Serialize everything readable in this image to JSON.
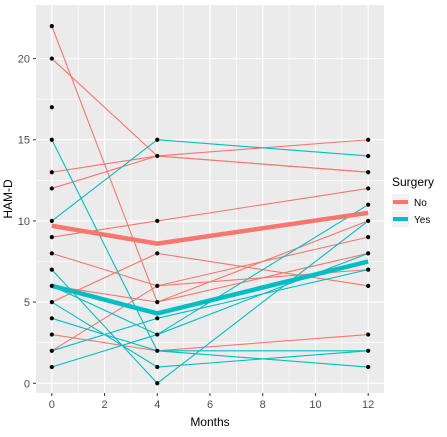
{
  "chart_data": {
    "type": "line",
    "title": "",
    "xlabel": "Months",
    "ylabel": "HAM-D",
    "xlim": [
      -0.6,
      12.6
    ],
    "ylim": [
      -0.6,
      23.3
    ],
    "x_ticks": [
      0,
      2,
      4,
      6,
      8,
      10,
      12
    ],
    "y_ticks": [
      0,
      5,
      10,
      15,
      20
    ],
    "grid": true,
    "legend": {
      "title": "Surgery",
      "position": "right",
      "entries": [
        {
          "label": "No",
          "color": "#F8766D"
        },
        {
          "label": "Yes",
          "color": "#00BFC4"
        }
      ]
    },
    "colors": {
      "No": "#F8766D",
      "Yes": "#00BFC4",
      "points": "#000000",
      "panel": "#EBEBEB",
      "grid": "#FFFFFF"
    },
    "mean_lines": [
      {
        "group": "No",
        "x": [
          0,
          4,
          12
        ],
        "y": [
          9.7,
          8.6,
          10.5
        ]
      },
      {
        "group": "Yes",
        "x": [
          0,
          4,
          12
        ],
        "y": [
          6.0,
          4.3,
          7.5
        ]
      }
    ],
    "subject_lines": [
      {
        "group": "No",
        "x": [
          0,
          4,
          12
        ],
        "y": [
          22,
          5,
          10
        ]
      },
      {
        "group": "No",
        "x": [
          0,
          4,
          12
        ],
        "y": [
          20,
          14,
          13
        ]
      },
      {
        "group": "No",
        "x": [
          0,
          4,
          12
        ],
        "y": [
          13,
          14,
          15
        ]
      },
      {
        "group": "No",
        "x": [
          0,
          4,
          12
        ],
        "y": [
          12,
          14,
          13
        ]
      },
      {
        "group": "No",
        "x": [
          0,
          4,
          12
        ],
        "y": [
          9,
          10,
          12
        ]
      },
      {
        "group": "No",
        "x": [
          0,
          4,
          12
        ],
        "y": [
          8,
          6,
          9
        ]
      },
      {
        "group": "No",
        "x": [
          0,
          4,
          12
        ],
        "y": [
          6,
          5,
          8
        ]
      },
      {
        "group": "No",
        "x": [
          0,
          4,
          12
        ],
        "y": [
          5,
          8,
          6
        ]
      },
      {
        "group": "No",
        "x": [
          0,
          4,
          12
        ],
        "y": [
          3,
          2,
          3
        ]
      },
      {
        "group": "No",
        "x": [
          0,
          4,
          12
        ],
        "y": [
          2,
          6,
          7
        ]
      },
      {
        "group": "Yes",
        "x": [
          0,
          4,
          12
        ],
        "y": [
          15,
          2,
          1
        ]
      },
      {
        "group": "Yes",
        "x": [
          0,
          4,
          12
        ],
        "y": [
          10,
          15,
          14
        ]
      },
      {
        "group": "Yes",
        "x": [
          0,
          4,
          12
        ],
        "y": [
          7,
          0,
          10
        ]
      },
      {
        "group": "Yes",
        "x": [
          0,
          4,
          12
        ],
        "y": [
          6,
          3,
          11
        ]
      },
      {
        "group": "Yes",
        "x": [
          0,
          4,
          12
        ],
        "y": [
          5,
          1,
          2
        ]
      },
      {
        "group": "Yes",
        "x": [
          0,
          4,
          12
        ],
        "y": [
          4,
          2,
          2
        ]
      },
      {
        "group": "Yes",
        "x": [
          0,
          4,
          12
        ],
        "y": [
          2,
          4,
          7
        ]
      },
      {
        "group": "Yes",
        "x": [
          0,
          4,
          12
        ],
        "y": [
          1,
          3,
          8
        ]
      }
    ],
    "points": [
      {
        "x": 0,
        "y": [
          22,
          20,
          17,
          15,
          13,
          12,
          10,
          9,
          8,
          7,
          6,
          5,
          4,
          3,
          2,
          1
        ]
      },
      {
        "x": 4,
        "y": [
          15,
          14,
          10,
          8,
          6,
          5,
          4,
          3,
          2,
          1,
          0
        ]
      },
      {
        "x": 12,
        "y": [
          15,
          14,
          13,
          12,
          11,
          10,
          9,
          8,
          7,
          6,
          3,
          2,
          1
        ]
      }
    ]
  }
}
